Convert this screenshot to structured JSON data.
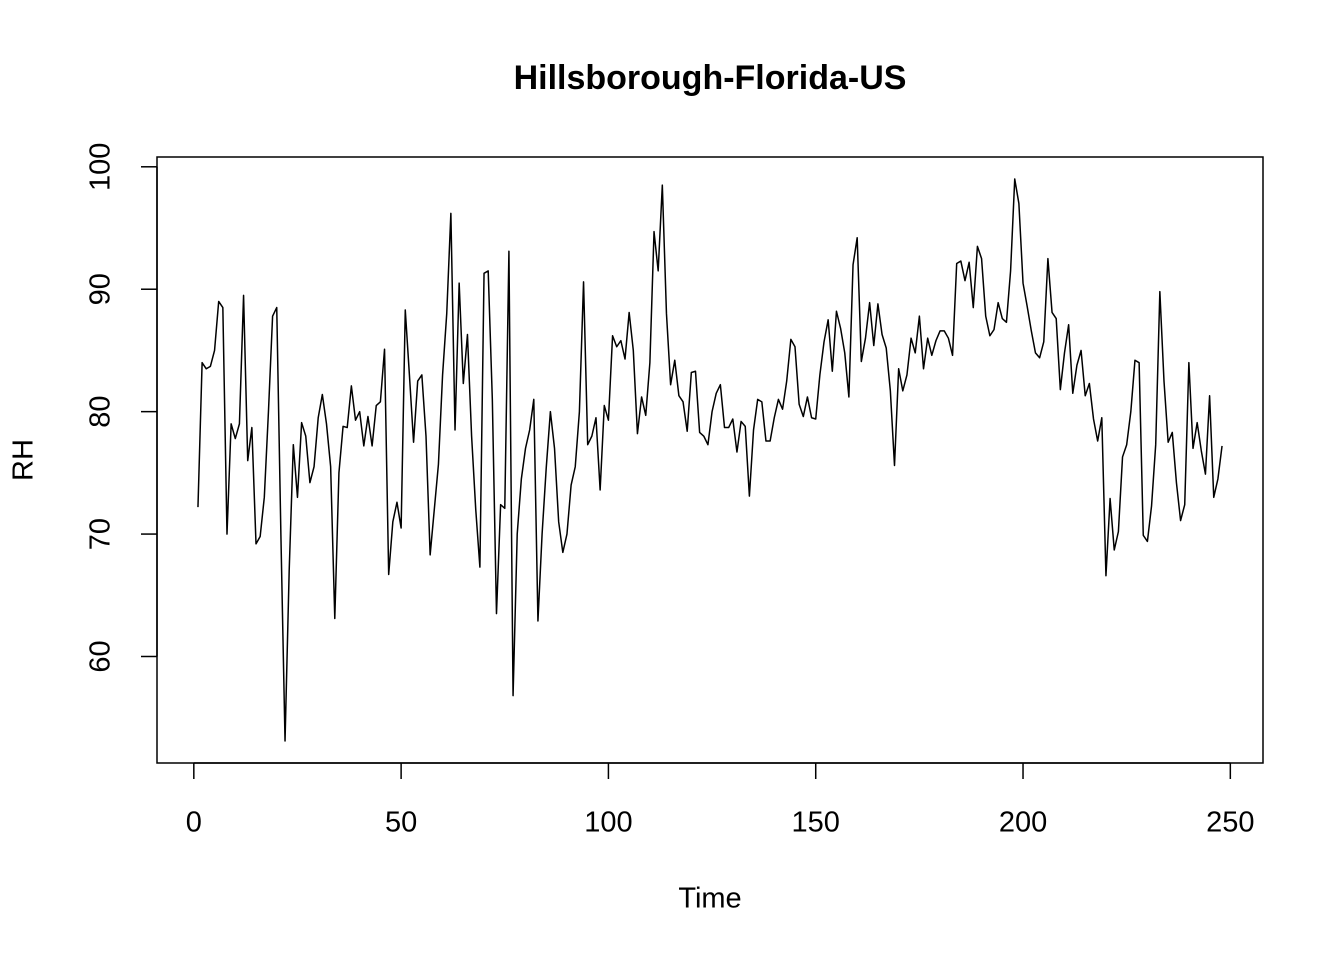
{
  "chart_data": {
    "type": "line",
    "title": "Hillsborough-Florida-US",
    "x_label": "Time",
    "y_label": "RH",
    "color": "#000000",
    "x": [
      1,
      2,
      3,
      4,
      5,
      6,
      7,
      8,
      9,
      10,
      11,
      12,
      13,
      14,
      15,
      16,
      17,
      18,
      19,
      20,
      21,
      22,
      23,
      24,
      25,
      26,
      27,
      28,
      29,
      30,
      31,
      32,
      33,
      34,
      35,
      36,
      37,
      38,
      39,
      40,
      41,
      42,
      43,
      44,
      45,
      46,
      47,
      48,
      49,
      50,
      51,
      52,
      53,
      54,
      55,
      56,
      57,
      58,
      59,
      60,
      61,
      62,
      63,
      64,
      65,
      66,
      67,
      68,
      69,
      70,
      71,
      72,
      73,
      74,
      75,
      76,
      77,
      78,
      79,
      80,
      81,
      82,
      83,
      84,
      85,
      86,
      87,
      88,
      89,
      90,
      91,
      92,
      93,
      94,
      95,
      96,
      97,
      98,
      99,
      100,
      101,
      102,
      103,
      104,
      105,
      106,
      107,
      108,
      109,
      110,
      111,
      112,
      113,
      114,
      115,
      116,
      117,
      118,
      119,
      120,
      121,
      122,
      123,
      124,
      125,
      126,
      127,
      128,
      129,
      130,
      131,
      132,
      133,
      134,
      135,
      136,
      137,
      138,
      139,
      140,
      141,
      142,
      143,
      144,
      145,
      146,
      147,
      148,
      149,
      150,
      151,
      152,
      153,
      154,
      155,
      156,
      157,
      158,
      159,
      160,
      161,
      162,
      163,
      164,
      165,
      166,
      167,
      168,
      169,
      170,
      171,
      172,
      173,
      174,
      175,
      176,
      177,
      178,
      179,
      180,
      181,
      182,
      183,
      184,
      185,
      186,
      187,
      188,
      189,
      190,
      191,
      192,
      193,
      194,
      195,
      196,
      197,
      198,
      199,
      200,
      201,
      202,
      203,
      204,
      205,
      206,
      207,
      208,
      209,
      210,
      211,
      212,
      213,
      214,
      215,
      216,
      217,
      218,
      219,
      220,
      221,
      222,
      223,
      224,
      225,
      226,
      227,
      228,
      229,
      230,
      231,
      232,
      233,
      234,
      235,
      236,
      237,
      238,
      239,
      240,
      241,
      242,
      243,
      244,
      245,
      246,
      247,
      248
    ],
    "values": [
      72.2,
      84,
      83.5,
      83.7,
      85,
      89,
      88.5,
      70,
      79,
      77.8,
      79,
      89.5,
      76,
      78.7,
      69.2,
      69.8,
      73,
      80,
      87.8,
      88.5,
      70,
      53.1,
      67,
      77.3,
      73,
      79.1,
      78,
      74.2,
      75.5,
      79.5,
      81.4,
      79,
      75.5,
      63.1,
      75,
      78.8,
      78.7,
      82.1,
      79.3,
      80,
      77.2,
      79.6,
      77.2,
      80.5,
      80.8,
      85.1,
      66.7,
      71,
      72.6,
      70.5,
      88.3,
      83,
      77.5,
      82.5,
      83,
      78,
      68.3,
      72,
      75.7,
      83,
      88,
      96.2,
      78.5,
      90.5,
      82.3,
      86.3,
      78,
      72,
      67.3,
      91.3,
      91.5,
      81,
      63.5,
      72.4,
      72.1,
      93.1,
      56.8,
      70,
      74.5,
      77,
      78.5,
      81,
      62.9,
      70,
      75.4,
      80,
      77,
      71,
      68.5,
      70,
      74,
      75.5,
      80,
      90.6,
      77.3,
      78,
      79.5,
      73.6,
      80.5,
      79.3,
      86.2,
      85.3,
      85.8,
      84.3,
      88.1,
      85,
      78.2,
      81.2,
      79.7,
      84,
      94.7,
      91.5,
      98.5,
      88,
      82.2,
      84.2,
      81.3,
      80.8,
      78.4,
      83.2,
      83.3,
      78.3,
      78,
      77.3,
      80,
      81.5,
      82.2,
      78.7,
      78.7,
      79.4,
      76.7,
      79.2,
      78.8,
      73.1,
      78.5,
      81,
      80.8,
      77.6,
      77.6,
      79.5,
      81,
      80.2,
      82.5,
      85.9,
      85.3,
      80.6,
      79.6,
      81.2,
      79.5,
      79.4,
      83,
      85.7,
      87.5,
      83.3,
      88.2,
      86.8,
      84.8,
      81.2,
      92,
      94.2,
      84.1,
      86,
      88.9,
      85.4,
      88.8,
      86.3,
      85.2,
      81.7,
      75.6,
      83.5,
      81.7,
      83,
      86,
      84.8,
      87.8,
      83.5,
      86,
      84.6,
      85.8,
      86.6,
      86.6,
      86,
      84.6,
      92.1,
      92.3,
      90.7,
      92.2,
      88.5,
      93.5,
      92.5,
      87.8,
      86.2,
      86.7,
      88.9,
      87.6,
      87.3,
      91.5,
      99,
      97,
      90.5,
      88.6,
      86.6,
      84.8,
      84.4,
      85.7,
      92.5,
      88.1,
      87.6,
      81.8,
      84.8,
      87.1,
      81.5,
      83.8,
      85,
      81.3,
      82.3,
      79.4,
      77.6,
      79.5,
      66.6,
      72.9,
      68.7,
      70.2,
      76.3,
      77.3,
      80,
      84.2,
      84,
      69.9,
      69.4,
      72.3,
      77.3,
      89.8,
      82.5,
      77.5,
      78.3,
      74.2,
      71.1,
      72.4,
      84,
      77,
      79.1,
      76.8,
      74.9,
      81.3,
      73,
      74.5,
      77.2
    ],
    "xlim": [
      -8.88,
      257.88
    ],
    "ylim": [
      51.3,
      100.8
    ],
    "xticks": [
      0,
      50,
      100,
      150,
      200,
      250
    ],
    "yticks": [
      60,
      70,
      80,
      90,
      100
    ]
  }
}
